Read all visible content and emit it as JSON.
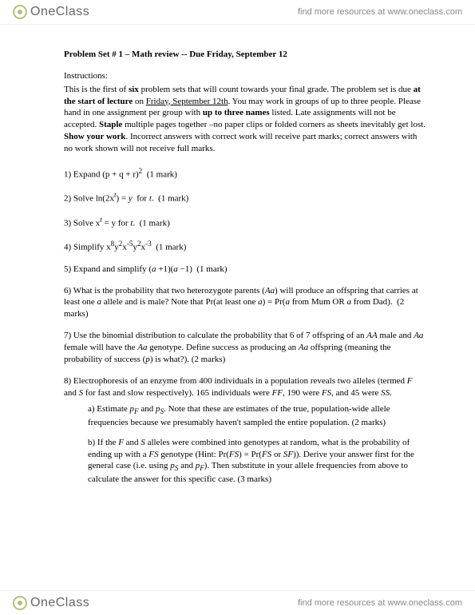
{
  "brand": {
    "name": "OneClass",
    "tagline": "find more resources at www.oneclass.com"
  },
  "doc": {
    "title": "Problem Set # 1 – Math review -- Due Friday, September 12",
    "instructions_label": "Instructions:",
    "instructions_html": "This is the first of <b>six</b> problem sets that will count towards your final grade. The problem set is due <b>at the start of lecture</b> on <u>Friday, September 12th</u>. You may work in groups of up to three people. Please hand in one assignment per group with <b>up to three names</b> listed. Late assignments will not be accepted. <b>Staple</b> multiple pages together –no paper clips or folded corners as sheets inevitably get lost. <b>Show your work</b>. Incorrect answers with correct work will receive part marks; correct answers with no work shown will not receive full marks.",
    "q1": "1) Expand (p + q + r)<sup>2</sup> &nbsp;(1 mark)",
    "q2": "2) Solve ln(2x<sup><i>t</i></sup>) = <i>y</i> &nbsp;for <i>t</i>. &nbsp;(1 mark)",
    "q3": "3) Solve x<sup><i>t</i></sup> = y for <i>t</i>. &nbsp;(1 mark)",
    "q4": "4) Simplify x<sup>8</sup>y<sup>2</sup>x<sup>-5</sup>y<sup>2</sup>x<sup>-3</sup> &nbsp;(1 mark)",
    "q5": "5) Expand and simplify (<i>a</i> +1)(<i>a</i> −1) &nbsp;(1 mark)",
    "q6": "6) What is the probability that two heterozygote parents (<i>Aa</i>) will produce an offspring that carries at least one <i>a</i> allele and is male? Note that Pr(at least one <i>a</i>) = Pr(<i>a</i> from Mum OR <i>a</i> from Dad). &nbsp;(2 marks)",
    "q7": "7) Use the binomial distribution to calculate the probability that 6 of 7 offspring of an <i>AA</i> male and <i>Aa</i> female will have the <i>Aa</i> genotype. Define success as producing an <i>Aa</i> offspring (meaning the probability of success (<i>p</i>) is what?). (2 marks)",
    "q8_intro": "8) Electrophoresis of an enzyme from 400 individuals in a population reveals two alleles (termed <i>F</i> and <i>S</i> for fast and slow respectively). 165 individuals were <i>FF</i>, 190 were <i>FS</i>, and 45 were <i>SS</i>.",
    "q8a": "a) Estimate <i>p<sub>F</sub></i> and <i>p<sub>S</sub></i>. Note that these are estimates of the true, population-wide allele frequencies because we presumably haven't sampled the entire population. (2 marks)",
    "q8b": "b) If the <i>F</i> and <i>S</i> alleles were combined into genotypes at random, what is the probability of ending up with a <i>FS</i> genotype (Hint: Pr(<i>FS</i>) = Pr(<i>FS</i> or <i>SF</i>)). Derive your answer first for the general case (i.e. using <i>p<sub>S</sub></i> and <i>p<sub>F</sub></i>). Then substitute in your allele frequencies from above to calculate the answer for this specific case. (3 marks)"
  }
}
